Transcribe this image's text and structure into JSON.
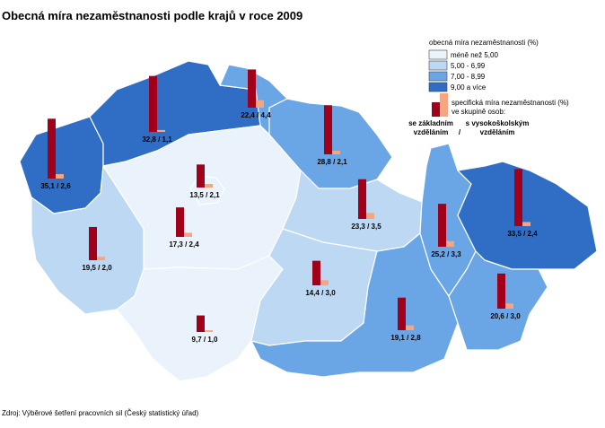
{
  "title": "Obecná míra nezaměstnanosti podle krajů v roce 2009",
  "source": "Zdroj: Výběrové šetření pracovních sil (Český statistický úřad)",
  "legend": {
    "title": "obecná míra nezaměstnanosti (%)",
    "classes": [
      {
        "label": "méně než 5,00",
        "color": "#eaf3fc"
      },
      {
        "label": "5,00 - 6,99",
        "color": "#bcd8f3"
      },
      {
        "label": "7,00 - 8,99",
        "color": "#6aa6e6"
      },
      {
        "label": "9,00 a více",
        "color": "#2f6ec4"
      }
    ],
    "bars_title": [
      "specifická míra nezaměstnanosti (%)",
      "ve skupině osob:"
    ],
    "bar_basic": {
      "label": [
        "se základním",
        "vzděláním"
      ],
      "color": "#a0001a"
    },
    "separator": "/",
    "bar_tertiary": {
      "label": [
        "s vysokoškolským",
        "vzděláním"
      ],
      "color": "#f4a582"
    }
  },
  "regions": [
    {
      "color": "#2f6ec4",
      "values": [
        35.1,
        2.6
      ],
      "value_label": "35,1 / 2,6"
    },
    {
      "color": "#2f6ec4",
      "values": [
        32.8,
        1.1
      ],
      "value_label": "32,8 / 1,1"
    },
    {
      "color": "#6aa6e6",
      "values": [
        22.4,
        4.4
      ],
      "value_label": "22,4 / 4,4"
    },
    {
      "color": "#6aa6e6",
      "values": [
        28.8,
        2.1
      ],
      "value_label": "28,8 / 2,1"
    },
    {
      "color": "#eaf3fc",
      "values": [
        17.3,
        2.4
      ],
      "value_label": "17,3 / 2,4"
    },
    {
      "color": "#eaf3fc",
      "values": [
        13.5,
        2.1
      ],
      "value_label": "13,5 / 2,1"
    },
    {
      "color": "#bcd8f3",
      "values": [
        19.5,
        2.0
      ],
      "value_label": "19,5 / 2,0"
    },
    {
      "color": "#eaf3fc",
      "values": [
        9.7,
        1.0
      ],
      "value_label": "9,7 / 1,0"
    },
    {
      "color": "#bcd8f3",
      "values": [
        23.3,
        3.5
      ],
      "value_label": "23,3 / 3,5"
    },
    {
      "color": "#bcd8f3",
      "values": [
        14.4,
        3.0
      ],
      "value_label": "14,4 / 3,0"
    },
    {
      "color": "#6aa6e6",
      "values": [
        19.1,
        2.8
      ],
      "value_label": "19,1 / 2,8"
    },
    {
      "color": "#6aa6e6",
      "values": [
        25.2,
        3.3
      ],
      "value_label": "25,2 / 3,3"
    },
    {
      "color": "#2f6ec4",
      "values": [
        33.5,
        2.4
      ],
      "value_label": "33,5 / 2,4"
    },
    {
      "color": "#6aa6e6",
      "values": [
        20.6,
        3.0
      ],
      "value_label": "20,6 / 3,0"
    }
  ]
}
